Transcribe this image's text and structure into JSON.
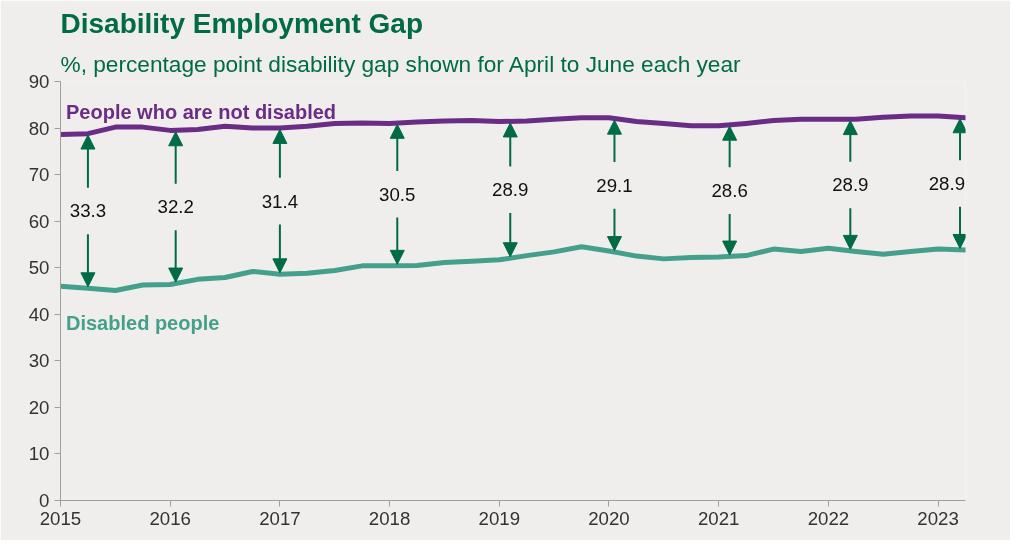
{
  "chart_data": {
    "type": "line",
    "title": "Disability Employment Gap",
    "subtitle": "%, percentage point disability gap shown for April to June each year",
    "x": [
      2015,
      2015.25,
      2015.5,
      2015.75,
      2016,
      2016.25,
      2016.5,
      2016.75,
      2017,
      2017.25,
      2017.5,
      2017.75,
      2018,
      2018.25,
      2018.5,
      2018.75,
      2019,
      2019.25,
      2019.5,
      2019.75,
      2020,
      2020.25,
      2020.5,
      2020.75,
      2021,
      2021.25,
      2021.5,
      2021.75,
      2022,
      2022.25,
      2022.5,
      2022.75,
      2023,
      2023.25
    ],
    "series": [
      {
        "name": "People who are not disabled",
        "color": "#6b2c85",
        "values": [
          78.6,
          78.8,
          80.2,
          80.2,
          79.5,
          79.7,
          80.4,
          80.0,
          80.0,
          80.4,
          81.0,
          81.1,
          81.0,
          81.3,
          81.5,
          81.6,
          81.4,
          81.5,
          81.9,
          82.2,
          82.2,
          81.4,
          81.0,
          80.5,
          80.5,
          81.0,
          81.6,
          81.9,
          81.9,
          81.9,
          82.3,
          82.6,
          82.6,
          82.2
        ]
      },
      {
        "name": "Disabled people",
        "color": "#44a08a",
        "values": [
          46.0,
          45.6,
          45.1,
          46.3,
          46.4,
          47.5,
          47.9,
          49.2,
          48.6,
          48.8,
          49.4,
          50.4,
          50.4,
          50.5,
          51.1,
          51.4,
          51.7,
          52.6,
          53.4,
          54.5,
          53.6,
          52.5,
          51.9,
          52.2,
          52.3,
          52.6,
          54.0,
          53.5,
          54.2,
          53.5,
          52.9,
          53.5,
          54.0,
          53.8
        ]
      }
    ],
    "xlim": [
      2015,
      2023.25
    ],
    "xticks": [
      2015,
      2016,
      2017,
      2018,
      2019,
      2020,
      2021,
      2022,
      2023
    ],
    "ylim": [
      0,
      90
    ],
    "yticks": [
      0,
      10,
      20,
      30,
      40,
      50,
      60,
      70,
      80,
      90
    ],
    "annotations": [
      {
        "text": "33.3",
        "x": 2015.25,
        "y": 78.8
      },
      {
        "text": "32.2",
        "x": 2016.05,
        "y": 79.5
      },
      {
        "text": "31.4",
        "x": 2017,
        "y": 80.0
      },
      {
        "text": "30.5",
        "x": 2018.07,
        "y": 81.1
      },
      {
        "text": "28.9",
        "x": 2019.1,
        "y": 81.4
      },
      {
        "text": "29.1",
        "x": 2020.05,
        "y": 82.0
      },
      {
        "text": "28.6",
        "x": 2021.1,
        "y": 80.7
      },
      {
        "text": "28.9",
        "x": 2022.2,
        "y": 81.9
      },
      {
        "text": "28.9",
        "x": 2023.2,
        "y": 82.3
      }
    ],
    "grid": false,
    "line_style": "solid",
    "marker": "none"
  }
}
